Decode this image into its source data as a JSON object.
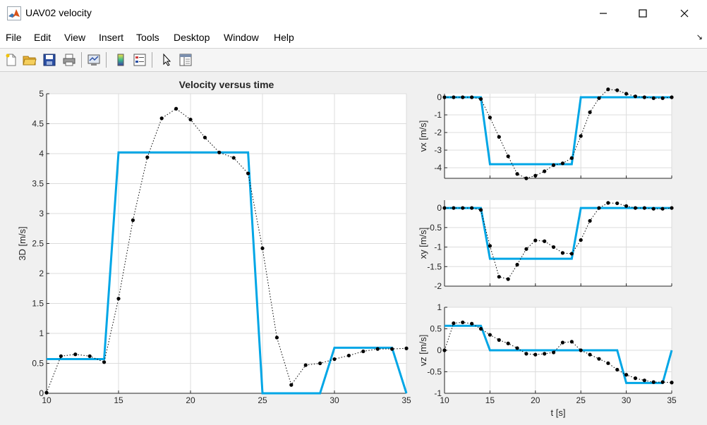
{
  "window": {
    "title": "UAV02 velocity",
    "minimize_label": "—",
    "maximize_label": "☐",
    "close_label": "✕"
  },
  "menu": [
    "File",
    "Edit",
    "View",
    "Insert",
    "Tools",
    "Desktop",
    "Window",
    "Help"
  ],
  "toolbar_icons": [
    "new-figure-icon",
    "open-file-icon",
    "save-icon",
    "print-icon",
    "link-plot-icon",
    "colorbar-icon",
    "legend-icon",
    "pointer-icon",
    "property-inspector-icon"
  ],
  "axes_toolbar_icons": [
    "brush-icon",
    "data-tips-icon",
    "save-axes-icon",
    "pan-icon",
    "zoom-in-icon",
    "zoom-out-icon",
    "home-icon"
  ],
  "colors": {
    "reference": "#00a6e6",
    "measured": "#000000"
  },
  "chart_data": [
    {
      "type": "line",
      "title": "Velocity versus time",
      "xlabel": "",
      "ylabel": "3D [m/s]",
      "xlim": [
        10,
        35
      ],
      "ylim": [
        0,
        5
      ],
      "xticks": [
        10,
        15,
        20,
        25,
        30,
        35
      ],
      "yticks": [
        0,
        0.5,
        1,
        1.5,
        2,
        2.5,
        3,
        3.5,
        4,
        4.5,
        5
      ],
      "ytick_labels": [
        "0",
        "0.5",
        "1",
        "1.5",
        "2",
        "2.5",
        "3",
        "3.5",
        "4",
        "4.5",
        "5"
      ],
      "grid": true,
      "series": [
        {
          "style": "solid-blue",
          "x": [
            10,
            14,
            15,
            24,
            25,
            29,
            30,
            34,
            35
          ],
          "y": [
            0.57,
            0.57,
            4.02,
            4.02,
            0,
            0,
            0.76,
            0.76,
            0
          ]
        },
        {
          "style": "dotted-black-markers",
          "x": [
            10,
            11,
            12,
            13,
            14,
            15,
            16,
            17,
            18,
            19,
            20,
            21,
            22,
            23,
            24,
            25,
            26,
            27,
            28,
            29,
            30,
            31,
            32,
            33,
            34,
            35
          ],
          "y": [
            0.01,
            0.62,
            0.65,
            0.62,
            0.52,
            1.58,
            2.89,
            3.94,
            4.59,
            4.75,
            4.57,
            4.27,
            4.02,
            3.93,
            3.67,
            2.42,
            0.93,
            0.14,
            0.47,
            0.5,
            0.57,
            0.63,
            0.7,
            0.74,
            0.74,
            0.75
          ]
        }
      ]
    },
    {
      "type": "line",
      "title": "",
      "xlabel": "",
      "ylabel": "vx [m/s]",
      "xlim": [
        10,
        35
      ],
      "ylim": [
        -4.6,
        0.2
      ],
      "xticks": [
        10,
        15,
        20,
        25,
        30,
        35
      ],
      "show_xtick_labels": false,
      "yticks": [
        0,
        -1,
        -2,
        -3,
        -4
      ],
      "ytick_labels": [
        "0",
        "-1",
        "-2",
        "-3",
        "-4"
      ],
      "grid": true,
      "series": [
        {
          "style": "solid-blue",
          "x": [
            10,
            14,
            15,
            24,
            25,
            35
          ],
          "y": [
            0,
            0,
            -3.8,
            -3.8,
            0,
            0
          ]
        },
        {
          "style": "dotted-black-markers",
          "x": [
            10,
            11,
            12,
            13,
            14,
            15,
            16,
            17,
            18,
            19,
            20,
            21,
            22,
            23,
            24,
            25,
            26,
            27,
            28,
            29,
            30,
            31,
            32,
            33,
            34,
            35
          ],
          "y": [
            0,
            0,
            0,
            0,
            -0.1,
            -1.15,
            -2.25,
            -3.35,
            -4.35,
            -4.6,
            -4.45,
            -4.2,
            -3.85,
            -3.75,
            -3.45,
            -2.2,
            -0.85,
            -0.05,
            0.45,
            0.4,
            0.2,
            0.05,
            0,
            -0.05,
            -0.05,
            0
          ]
        }
      ]
    },
    {
      "type": "line",
      "title": "",
      "xlabel": "",
      "ylabel": "xy [m/s]",
      "xlim": [
        10,
        35
      ],
      "ylim": [
        -2,
        0.2
      ],
      "xticks": [
        10,
        15,
        20,
        25,
        30,
        35
      ],
      "show_xtick_labels": false,
      "yticks": [
        0,
        -0.5,
        -1,
        -1.5,
        -2
      ],
      "ytick_labels": [
        "0",
        "-0.5",
        "-1",
        "-1.5",
        "-2"
      ],
      "grid": true,
      "series": [
        {
          "style": "solid-blue",
          "x": [
            10,
            14,
            15,
            24,
            25,
            35
          ],
          "y": [
            0,
            0,
            -1.3,
            -1.3,
            0,
            0
          ]
        },
        {
          "style": "dotted-black-markers",
          "x": [
            10,
            11,
            12,
            13,
            14,
            15,
            16,
            17,
            18,
            19,
            20,
            21,
            22,
            23,
            24,
            25,
            26,
            27,
            28,
            29,
            30,
            31,
            32,
            33,
            34,
            35
          ],
          "y": [
            0,
            0,
            0,
            0,
            -0.05,
            -0.97,
            -1.76,
            -1.82,
            -1.45,
            -1.05,
            -0.83,
            -0.85,
            -1.0,
            -1.15,
            -1.17,
            -0.82,
            -0.33,
            0,
            0.13,
            0.12,
            0.05,
            0,
            0,
            -0.02,
            -0.02,
            0
          ]
        }
      ]
    },
    {
      "type": "line",
      "title": "",
      "xlabel": "t [s]",
      "ylabel": "vz [m/s]",
      "xlim": [
        10,
        35
      ],
      "ylim": [
        -1,
        1
      ],
      "xticks": [
        10,
        15,
        20,
        25,
        30,
        35
      ],
      "yticks": [
        1,
        0.5,
        0,
        -0.5,
        -1
      ],
      "ytick_labels": [
        "1",
        "0.5",
        "0",
        "-0.5",
        "-1"
      ],
      "grid": true,
      "series": [
        {
          "style": "solid-blue",
          "x": [
            10,
            14,
            15,
            29,
            30,
            34,
            35
          ],
          "y": [
            0.57,
            0.57,
            0,
            0,
            -0.76,
            -0.76,
            0
          ]
        },
        {
          "style": "dotted-black-markers",
          "x": [
            10,
            11,
            12,
            13,
            14,
            15,
            16,
            17,
            18,
            19,
            20,
            21,
            22,
            23,
            24,
            25,
            26,
            27,
            28,
            29,
            30,
            31,
            32,
            33,
            34,
            35
          ],
          "y": [
            0,
            0.63,
            0.65,
            0.62,
            0.5,
            0.36,
            0.24,
            0.16,
            0.05,
            -0.08,
            -0.1,
            -0.08,
            -0.05,
            0.18,
            0.2,
            0,
            -0.1,
            -0.2,
            -0.3,
            -0.45,
            -0.57,
            -0.65,
            -0.7,
            -0.74,
            -0.74,
            -0.75
          ]
        }
      ]
    }
  ]
}
